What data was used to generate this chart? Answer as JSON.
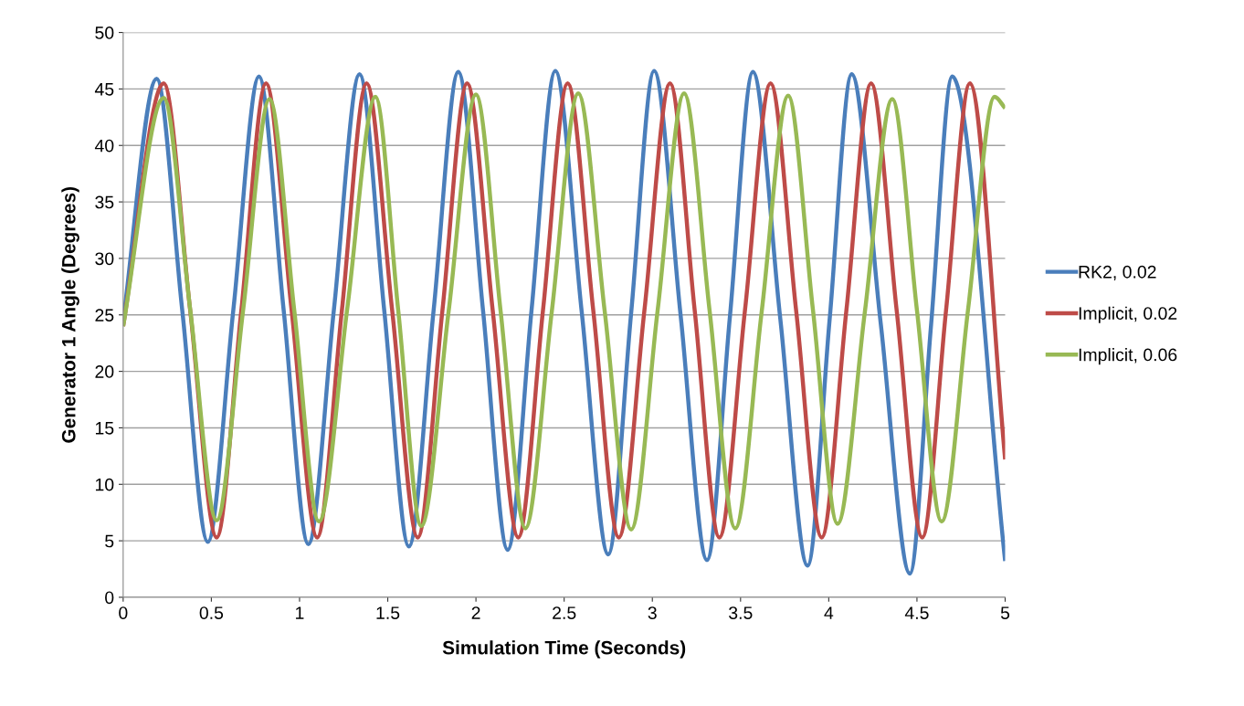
{
  "chart_data": {
    "type": "line",
    "xlabel": "Simulation Time (Seconds)",
    "ylabel": "Generator 1 Angle (Degrees)",
    "xlim": [
      0,
      5
    ],
    "xticks": [
      0,
      0.5,
      1,
      1.5,
      2,
      2.5,
      3,
      3.5,
      4,
      4.5,
      5
    ],
    "ylim": [
      0,
      50
    ],
    "yticks": [
      0,
      5,
      10,
      15,
      20,
      25,
      30,
      35,
      40,
      45,
      50
    ],
    "grid": "y",
    "legend": "right",
    "marker": "none",
    "line_style": "solid",
    "series": [
      {
        "name": "RK2, 0.02",
        "color": "#4a7ebb",
        "x": [
          0,
          0.19,
          0.335,
          0.48,
          0.625,
          0.77,
          0.91,
          1.05,
          1.195,
          1.34,
          1.48,
          1.62,
          1.76,
          1.9,
          2.04,
          2.18,
          2.315,
          2.45,
          2.6,
          2.75,
          2.88,
          3.01,
          3.16,
          3.31,
          3.44,
          3.57,
          3.725,
          3.88,
          4.005,
          4.13,
          4.295,
          4.46,
          4.58,
          4.7,
          5
        ],
        "values": [
          24.5,
          45.9,
          25.4,
          4.9,
          25.5,
          46.1,
          25.4,
          4.7,
          25.5,
          46.3,
          25.4,
          4.5,
          25.4,
          46.5,
          25.4,
          4.2,
          25.4,
          46.6,
          25.2,
          3.8,
          25.2,
          46.6,
          25,
          3.3,
          24.9,
          46.5,
          24.7,
          2.8,
          24.6,
          46.3,
          24.2,
          2.1,
          24.1,
          46.1,
          3.2
        ]
      },
      {
        "name": "Implicit, 0.02",
        "color": "#be4b48",
        "x": [
          0,
          0.23,
          0.38,
          0.53,
          0.67,
          0.81,
          0.955,
          1.1,
          1.24,
          1.38,
          1.525,
          1.67,
          1.81,
          1.95,
          2.095,
          2.24,
          2.38,
          2.52,
          2.665,
          2.81,
          2.955,
          3.1,
          3.24,
          3.38,
          3.525,
          3.67,
          3.815,
          3.96,
          4.1,
          4.24,
          4.385,
          4.53,
          4.665,
          4.8,
          5
        ],
        "values": [
          24,
          45.5,
          25.4,
          5.3,
          25.4,
          45.5,
          25.4,
          5.3,
          25.4,
          45.5,
          25.4,
          5.3,
          25.4,
          45.5,
          25.4,
          5.3,
          25.4,
          45.5,
          25.4,
          5.3,
          25.4,
          45.5,
          25.4,
          5.3,
          25.4,
          45.5,
          25.4,
          5.3,
          25.4,
          45.5,
          25.4,
          5.3,
          25.4,
          45.5,
          12.2
        ]
      },
      {
        "name": "Implicit, 0.06",
        "color": "#98b954",
        "x": [
          0,
          0.23,
          0.38,
          0.53,
          0.68,
          0.83,
          0.97,
          1.11,
          1.27,
          1.43,
          1.56,
          1.69,
          1.845,
          2,
          2.14,
          2.28,
          2.43,
          2.58,
          2.73,
          2.88,
          3.03,
          3.18,
          3.325,
          3.47,
          3.62,
          3.77,
          3.91,
          4.05,
          4.205,
          4.36,
          4.5,
          4.64,
          4.79,
          4.94,
          5
        ],
        "values": [
          24,
          44.2,
          25.5,
          6.8,
          25.4,
          44.1,
          25.4,
          6.7,
          25.5,
          44.3,
          25.3,
          6.3,
          25.3,
          44.5,
          25.3,
          6.1,
          25.3,
          44.6,
          25.3,
          6,
          25.4,
          44.6,
          25.3,
          6.1,
          25.3,
          44.4,
          25.5,
          6.5,
          25.3,
          44.1,
          25.4,
          6.7,
          25.5,
          44.3,
          43.3
        ]
      }
    ]
  }
}
